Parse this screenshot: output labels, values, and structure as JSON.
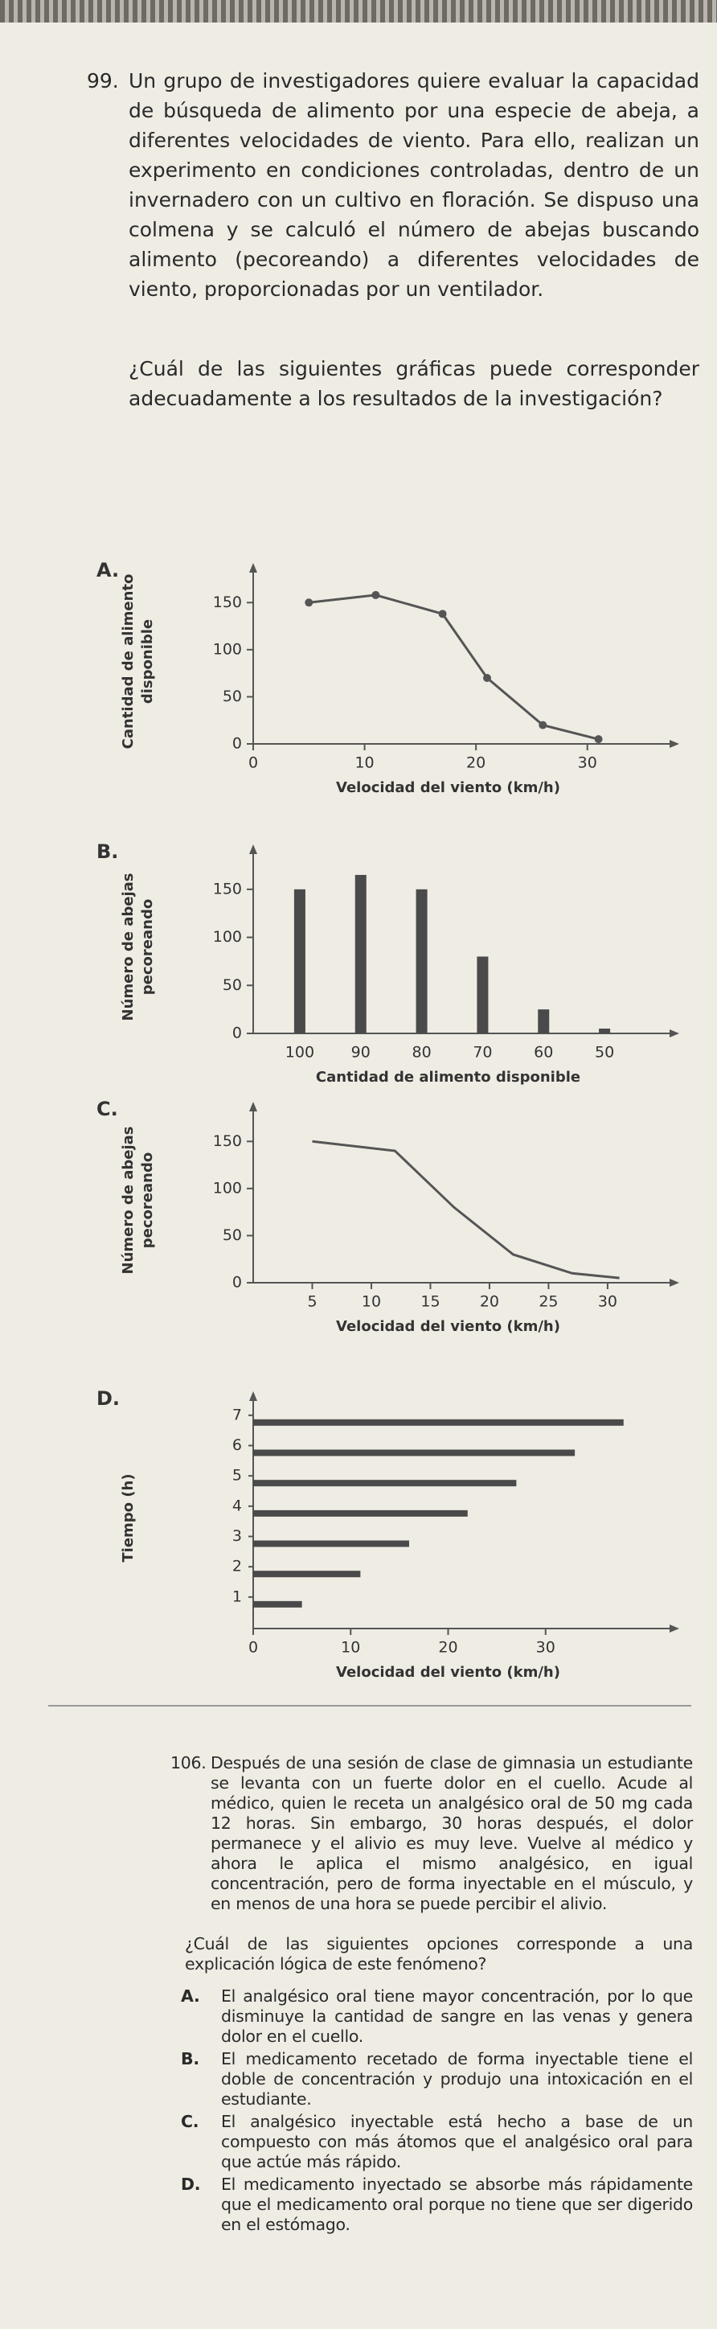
{
  "question_99": {
    "number": "99.",
    "text": "Un grupo de investigadores quiere evaluar la capacidad de búsqueda de alimento por una especie de abeja, a diferentes velocidades de viento. Para ello, realizan un experimento en condiciones controladas, dentro de un invernadero con un cultivo en floración. Se dispuso una colmena y se calculó el número de abejas buscando alimento (pecoreando) a diferentes velocidades de viento, proporcionadas por un ventilador.",
    "prompt": "¿Cuál de las siguientes gráficas puede corresponder adecuadamente a los resultados de la investigación?"
  },
  "chart_data": [
    {
      "type": "line",
      "label": "A.",
      "y_label": [
        "Cantidad de alimento",
        "disponible"
      ],
      "x_label": "Velocidad del viento (km/h)",
      "x": [
        5,
        11,
        17,
        21,
        26,
        31
      ],
      "values": [
        150,
        158,
        138,
        70,
        20,
        5
      ],
      "markers": true,
      "color": "#555555",
      "xlim": [
        0,
        35
      ],
      "ylim": [
        0,
        175
      ],
      "xticks": [
        0,
        10,
        20,
        30
      ],
      "yticks": [
        0,
        50,
        100,
        150
      ]
    },
    {
      "type": "bar",
      "label": "B.",
      "y_label": [
        "Número de abejas",
        "pecoreando"
      ],
      "x_label": "Cantidad de alimento disponible",
      "categories": [
        "100",
        "90",
        "80",
        "70",
        "60",
        "50"
      ],
      "values": [
        150,
        165,
        150,
        80,
        25,
        5
      ],
      "color": "#4a4a4a",
      "ylim": [
        0,
        180
      ],
      "yticks": [
        0,
        50,
        100,
        150
      ]
    },
    {
      "type": "line",
      "label": "C.",
      "y_label": [
        "Número de abejas",
        "pecoreando"
      ],
      "x_label": "Velocidad del viento (km/h)",
      "x": [
        5,
        12,
        17,
        22,
        27,
        31
      ],
      "values": [
        150,
        140,
        80,
        30,
        10,
        5
      ],
      "markers": false,
      "color": "#555555",
      "xlim": [
        0,
        33
      ],
      "ylim": [
        0,
        175
      ],
      "xticks": [
        5,
        10,
        15,
        20,
        25,
        30
      ],
      "yticks": [
        0,
        50,
        100,
        150
      ]
    },
    {
      "type": "hbar",
      "label": "D.",
      "y_label": [
        "Tiempo (h)"
      ],
      "x_label": "Velocidad del viento (km/h)",
      "categories": [
        "1",
        "2",
        "3",
        "4",
        "5",
        "6",
        "7"
      ],
      "values": [
        5,
        11,
        16,
        22,
        27,
        33,
        38
      ],
      "color": "#4a4a4a",
      "xlim": [
        0,
        40
      ],
      "xticks": [
        0,
        10,
        20,
        30
      ]
    }
  ],
  "question_106": {
    "number": "106.",
    "text": "Después de una sesión de clase de gimnasia un estudiante se levanta con un fuerte dolor en el cuello. Acude al médico, quien le receta un analgésico oral de 50 mg cada 12 horas. Sin embargo, 30 horas después, el dolor permanece y el alivio es muy leve. Vuelve al médico y ahora le aplica el mismo analgésico, en igual concentración, pero de forma inyectable en el músculo, y en menos de una hora se puede percibir el alivio.",
    "prompt": "¿Cuál de las siguientes opciones corresponde a una explicación lógica de este fenómeno?",
    "options": [
      {
        "letter": "A.",
        "text": "El analgésico oral tiene mayor concentración, por lo que disminuye la cantidad de sangre en las venas y genera dolor en el cuello."
      },
      {
        "letter": "B.",
        "text": "El medicamento recetado de forma inyectable tiene el doble de concentración y produjo una intoxicación en el estudiante."
      },
      {
        "letter": "C.",
        "text": "El analgésico inyectable está hecho a base de un compuesto con más átomos que el analgésico oral para que actúe más rápido."
      },
      {
        "letter": "D.",
        "text": "El medicamento inyectado se absorbe más rápidamente que el medicamento oral porque no tiene que ser digerido en el estómago."
      }
    ]
  }
}
